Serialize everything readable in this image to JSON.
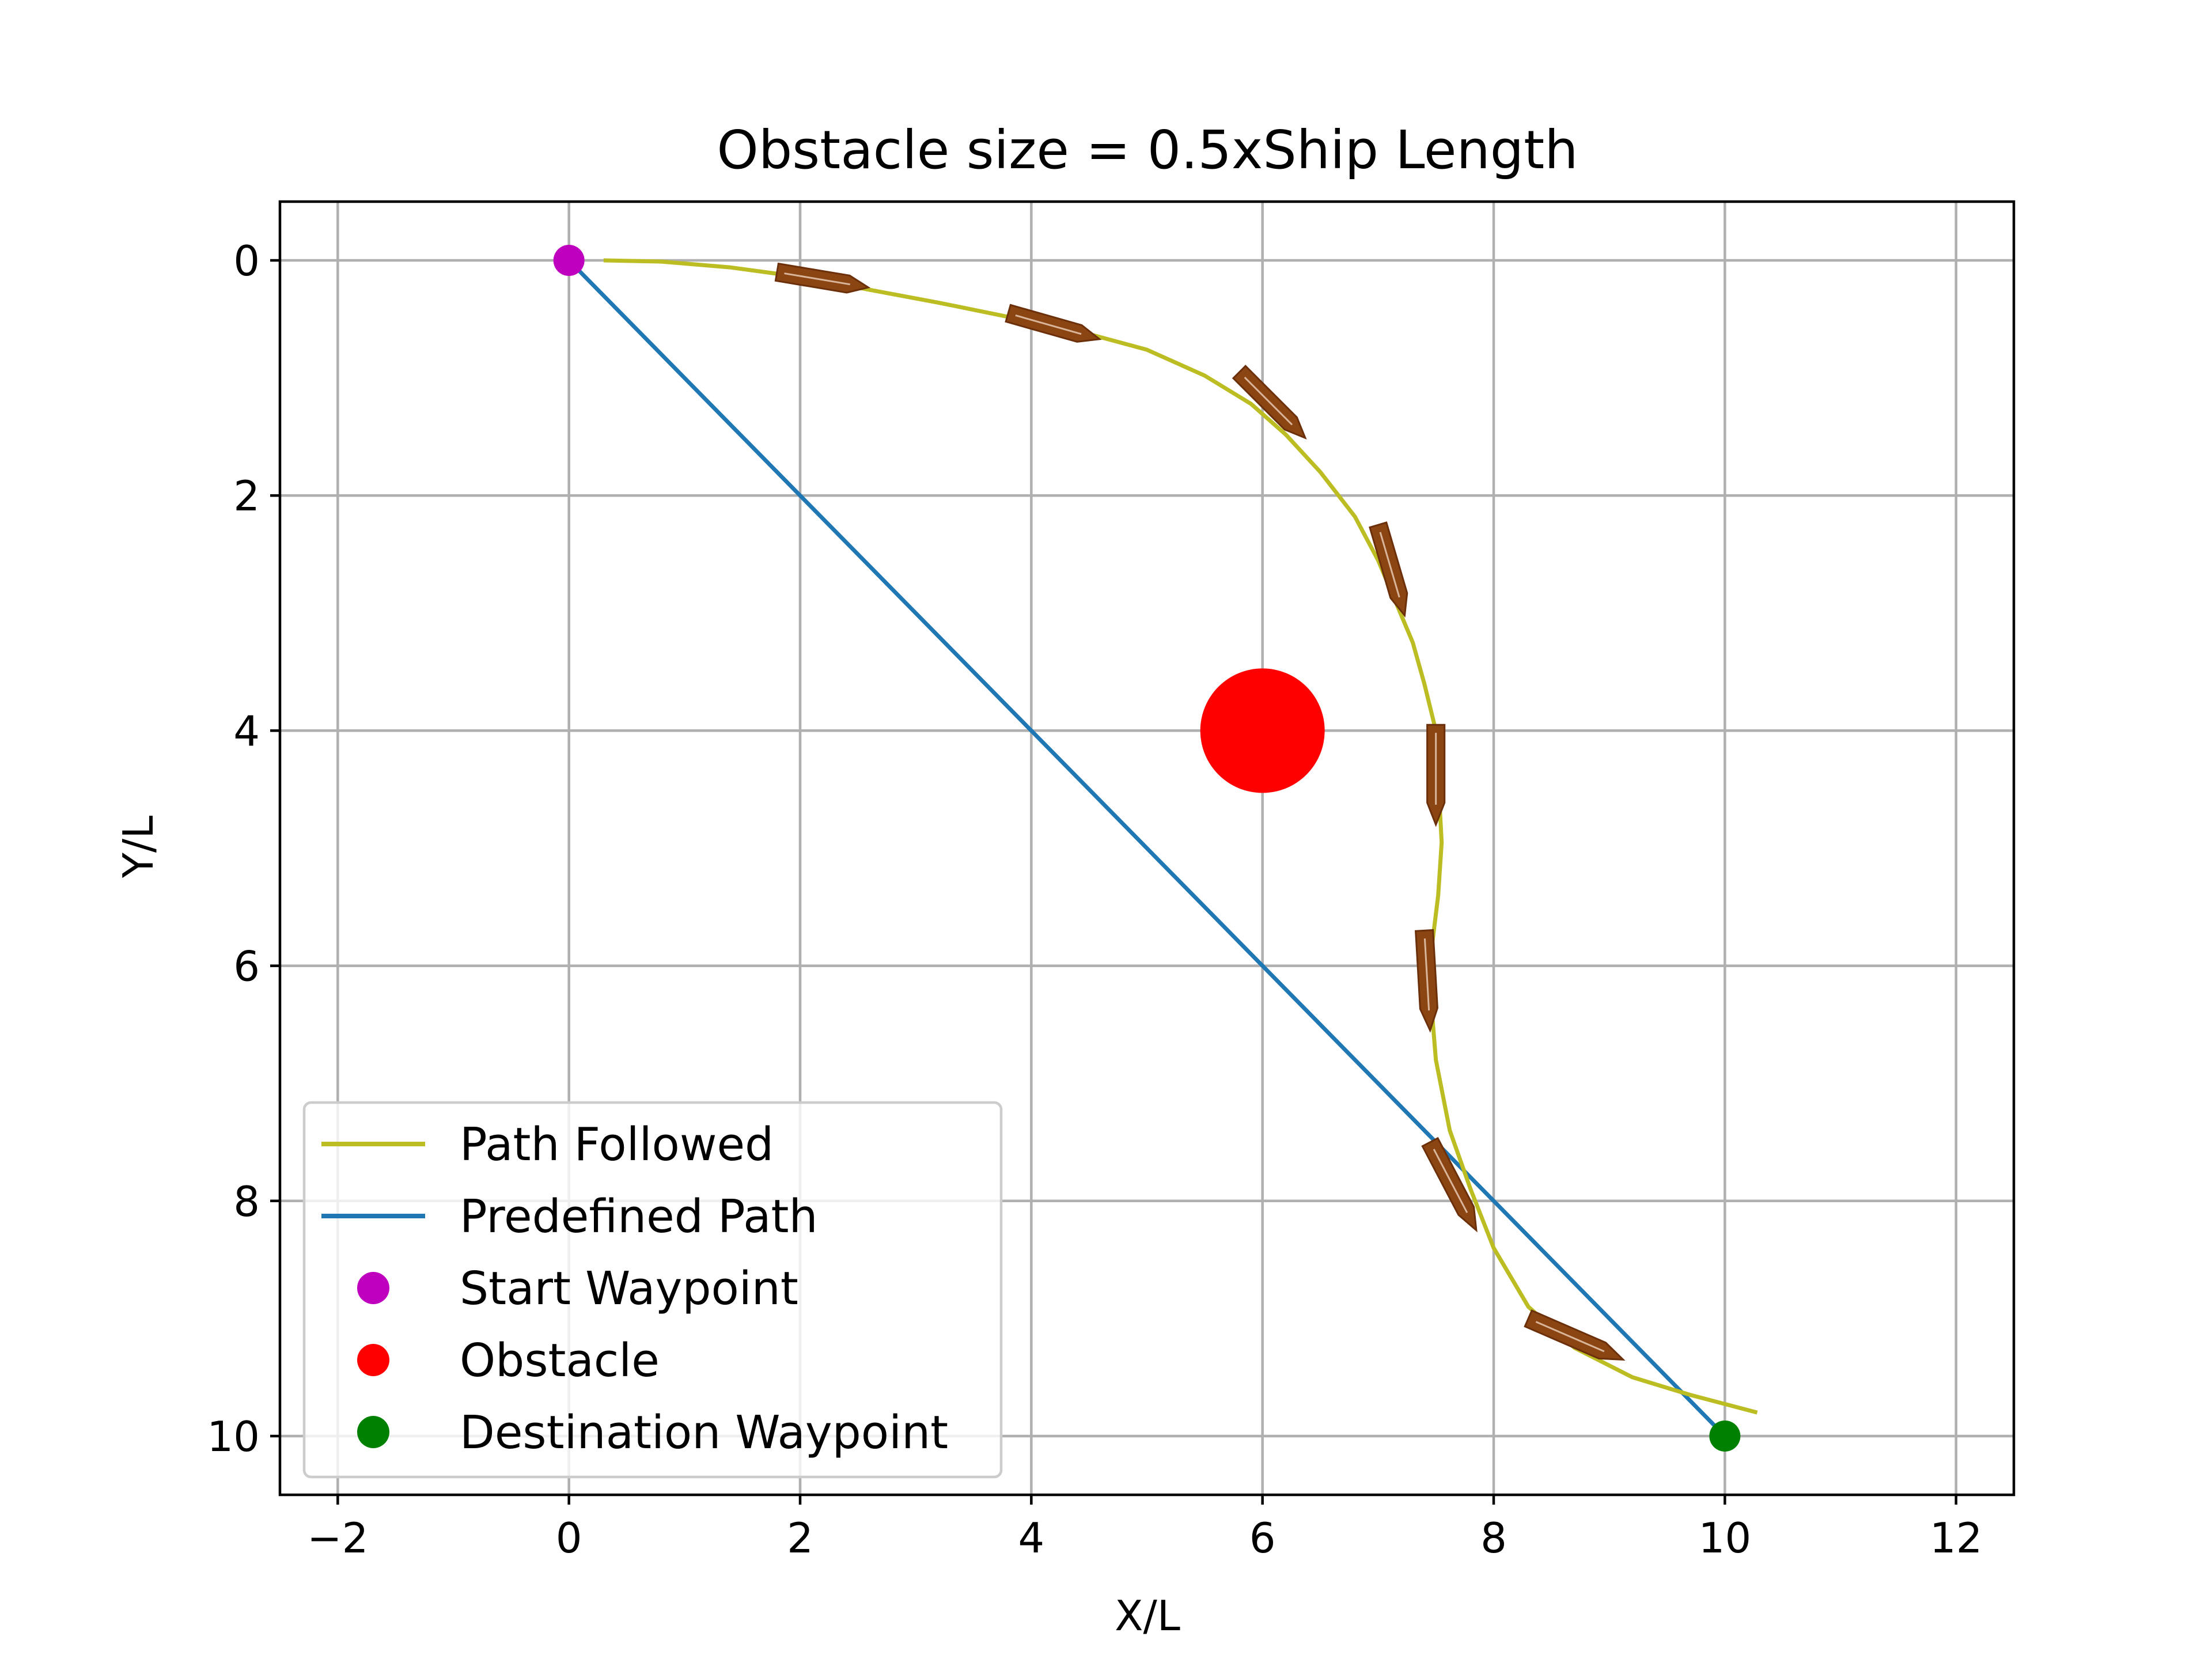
{
  "chart_data": {
    "type": "line",
    "title": "Obstacle size = 0.5xShip Length",
    "xlabel": "X/L",
    "ylabel": "Y/L",
    "xlim": [
      -2.5,
      12.5
    ],
    "ylim": [
      10.5,
      -0.5
    ],
    "y_inverted": true,
    "grid": true,
    "x_ticks": [
      {
        "value": -2,
        "label": "−2"
      },
      {
        "value": 0,
        "label": "0"
      },
      {
        "value": 2,
        "label": "2"
      },
      {
        "value": 4,
        "label": "4"
      },
      {
        "value": 6,
        "label": "6"
      },
      {
        "value": 8,
        "label": "8"
      },
      {
        "value": 10,
        "label": "10"
      },
      {
        "value": 12,
        "label": "12"
      }
    ],
    "y_ticks": [
      {
        "value": 0,
        "label": "0"
      },
      {
        "value": 2,
        "label": "2"
      },
      {
        "value": 4,
        "label": "4"
      },
      {
        "value": 6,
        "label": "6"
      },
      {
        "value": 8,
        "label": "8"
      },
      {
        "value": 10,
        "label": "10"
      }
    ],
    "series": [
      {
        "name": "Path Followed",
        "kind": "line",
        "color": "#bcbd22",
        "x": [
          0.3,
          0.8,
          1.4,
          2.0,
          2.6,
          3.2,
          3.8,
          4.4,
          5.0,
          5.5,
          5.9,
          6.2,
          6.5,
          6.8,
          7.0,
          7.15,
          7.3,
          7.4,
          7.5,
          7.52,
          7.55,
          7.52,
          7.47,
          7.45,
          7.5,
          7.62,
          7.8,
          8.0,
          8.3,
          8.7,
          9.2,
          9.7,
          10.28
        ],
        "y": [
          0.0,
          0.01,
          0.06,
          0.14,
          0.25,
          0.36,
          0.48,
          0.6,
          0.76,
          0.98,
          1.22,
          1.48,
          1.8,
          2.18,
          2.55,
          2.9,
          3.25,
          3.6,
          4.0,
          4.4,
          4.95,
          5.4,
          5.8,
          6.2,
          6.8,
          7.4,
          7.9,
          8.4,
          8.9,
          9.25,
          9.5,
          9.65,
          9.8
        ]
      },
      {
        "name": "Predefined Path",
        "kind": "line",
        "color": "#1f77b4",
        "x": [
          0,
          10
        ],
        "y": [
          0,
          10
        ]
      }
    ],
    "points": [
      {
        "name": "Start Waypoint",
        "x": 0,
        "y": 0,
        "color": "#bf00bf"
      },
      {
        "name": "Destination Waypoint",
        "x": 10,
        "y": 10,
        "color": "#008000"
      }
    ],
    "obstacle": {
      "name": "Obstacle",
      "x": 6,
      "y": 4,
      "radius": 0.25,
      "color": "#ff0000"
    },
    "ship_markers": {
      "color": "#8b4513",
      "length": 1.0,
      "width": 0.15,
      "poses": [
        {
          "x": 1.8,
          "y": 0.1,
          "heading_x": 0.79,
          "heading_y": 0.13
        },
        {
          "x": 3.8,
          "y": 0.45,
          "heading_x": 0.79,
          "heading_y": 0.22
        },
        {
          "x": 5.8,
          "y": 0.95,
          "heading_x": 0.57,
          "heading_y": 0.56
        },
        {
          "x": 7.0,
          "y": 2.25,
          "heading_x": 0.23,
          "heading_y": 0.77
        },
        {
          "x": 7.5,
          "y": 3.95,
          "heading_x": 0.0,
          "heading_y": 0.85
        },
        {
          "x": 7.4,
          "y": 5.7,
          "heading_x": 0.05,
          "heading_y": 0.85
        },
        {
          "x": 7.45,
          "y": 7.5,
          "heading_x": 0.4,
          "heading_y": 0.75
        },
        {
          "x": 8.3,
          "y": 9.0,
          "heading_x": 0.82,
          "heading_y": 0.35
        }
      ]
    },
    "legend": {
      "placement": "lower left",
      "entries": [
        {
          "label": "Path Followed",
          "marker": "line",
          "color": "#bcbd22"
        },
        {
          "label": "Predefined Path",
          "marker": "line",
          "color": "#1f77b4"
        },
        {
          "label": "Start Waypoint",
          "marker": "dot",
          "color": "#bf00bf"
        },
        {
          "label": "Obstacle",
          "marker": "dot",
          "color": "#ff0000"
        },
        {
          "label": "Destination Waypoint",
          "marker": "dot",
          "color": "#008000"
        }
      ]
    }
  }
}
